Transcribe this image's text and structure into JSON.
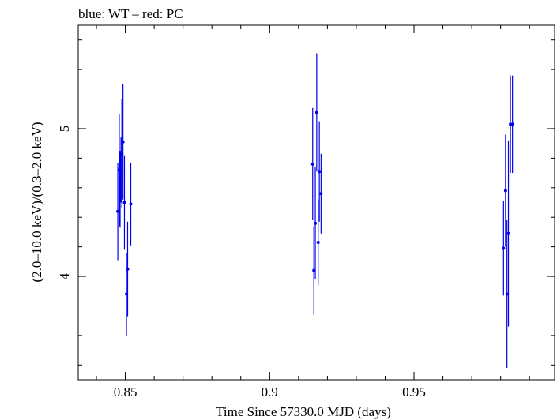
{
  "chart_data": {
    "type": "scatter",
    "title": "blue: WT – red: PC",
    "xlabel": "Time Since 57330.0 MJD (days)",
    "ylabel": "(2.0–10.0 keV)/(0.3–2.0 keV)",
    "xlim": [
      0.8337,
      0.9987
    ],
    "ylim": [
      3.3,
      5.7
    ],
    "x_ticks": [
      {
        "value": 0.85,
        "label": "0.85"
      },
      {
        "value": 0.9,
        "label": "0.9"
      },
      {
        "value": 0.95,
        "label": "0.95"
      }
    ],
    "y_ticks": [
      {
        "value": 4,
        "label": "4"
      },
      {
        "value": 5,
        "label": "5"
      }
    ],
    "grid": false,
    "series": [
      {
        "name": "WT",
        "color": "#0000ee",
        "points": [
          {
            "x": 0.8474,
            "y": 4.44,
            "yerr": 0.33
          },
          {
            "x": 0.8479,
            "y": 4.72,
            "yerr": 0.38
          },
          {
            "x": 0.8482,
            "y": 4.59,
            "yerr": 0.26
          },
          {
            "x": 0.8485,
            "y": 4.72,
            "yerr": 0.22
          },
          {
            "x": 0.8488,
            "y": 4.83,
            "yerr": 0.37
          },
          {
            "x": 0.8492,
            "y": 4.91,
            "yerr": 0.39
          },
          {
            "x": 0.8497,
            "y": 4.5,
            "yerr": 0.32
          },
          {
            "x": 0.8504,
            "y": 3.88,
            "yerr": 0.28
          },
          {
            "x": 0.8508,
            "y": 4.05,
            "yerr": 0.32
          },
          {
            "x": 0.8519,
            "y": 4.49,
            "yerr": 0.28
          },
          {
            "x": 0.9149,
            "y": 4.76,
            "yerr": 0.38
          },
          {
            "x": 0.9153,
            "y": 4.04,
            "yerr": 0.3
          },
          {
            "x": 0.9158,
            "y": 4.36,
            "yerr": 0.38
          },
          {
            "x": 0.9163,
            "y": 5.11,
            "yerr": 0.4
          },
          {
            "x": 0.9168,
            "y": 4.23,
            "yerr": 0.29
          },
          {
            "x": 0.9172,
            "y": 4.71,
            "yerr": 0.34
          },
          {
            "x": 0.9178,
            "y": 4.56,
            "yerr": 0.27
          },
          {
            "x": 0.981,
            "y": 4.19,
            "yerr": 0.32
          },
          {
            "x": 0.9817,
            "y": 4.58,
            "yerr": 0.38
          },
          {
            "x": 0.9822,
            "y": 3.88,
            "yerr": 0.5
          },
          {
            "x": 0.9827,
            "y": 4.29,
            "yerr": 0.63
          },
          {
            "x": 0.9834,
            "y": 5.03,
            "yerr": 0.33
          },
          {
            "x": 0.9841,
            "y": 5.03,
            "yerr": 0.33
          }
        ]
      }
    ]
  }
}
